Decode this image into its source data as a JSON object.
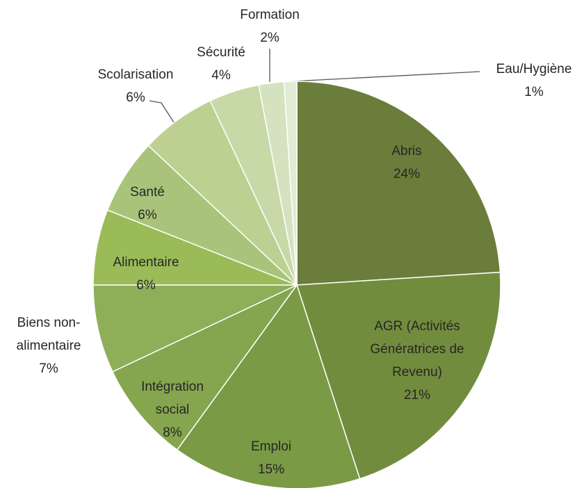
{
  "chart_data": {
    "type": "pie",
    "categories": [
      "Abris",
      "AGR (Activités\nGénératrices de\nRevenu)",
      "Emploi",
      "Intégration\nsocial",
      "Biens non-\nalimentaire",
      "Alimentaire",
      "Santé",
      "Scolarisation",
      "Sécurité",
      "Formation",
      "Eau/Hygiène"
    ],
    "values": [
      24,
      21,
      15,
      8,
      7,
      6,
      6,
      6,
      4,
      2,
      1
    ],
    "value_labels": [
      "24%",
      "21%",
      "15%",
      "8%",
      "7%",
      "6%",
      "6%",
      "6%",
      "4%",
      "2%",
      "1%"
    ],
    "colors": [
      "#6b7d3a",
      "#728c3e",
      "#7a9a45",
      "#86a54f",
      "#8fae58",
      "#9bbb59",
      "#a9c47a",
      "#bcd092",
      "#c8d9a8",
      "#d5e2bf",
      "#e2ebd3"
    ]
  }
}
